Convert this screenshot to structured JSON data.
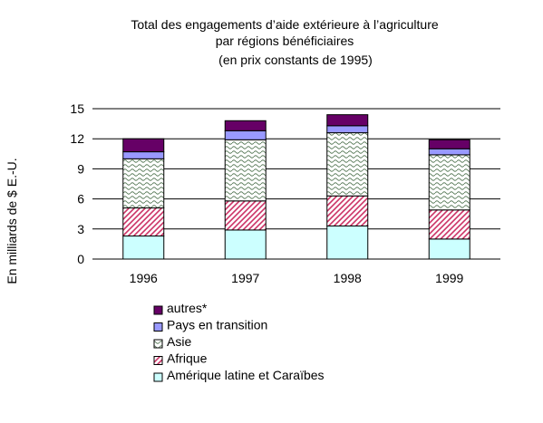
{
  "chart_data": {
    "type": "bar",
    "stacked": true,
    "title": [
      "Total des engagements d’aide extérieure à l’agriculture",
      "par régions bénéficiaires",
      "(en prix constants de 1995)"
    ],
    "ylabel": "En milliards de $ E.-U.",
    "xlabel": "",
    "ylim": [
      0,
      15
    ],
    "yticks": [
      "0",
      "3",
      "6",
      "9",
      "12",
      "15"
    ],
    "grid": true,
    "legend_position": "bottom",
    "categories": [
      "1996",
      "1997",
      "1998",
      "1999"
    ],
    "series": [
      {
        "name": "Amérique latine et Caraïbes",
        "values": [
          2.3,
          2.9,
          3.3,
          2.0
        ],
        "color": "#ccffff",
        "pattern": "solid"
      },
      {
        "name": "Afrique",
        "values": [
          2.8,
          2.9,
          3.0,
          2.9
        ],
        "color": "#ff99cc",
        "pattern": "diagonal"
      },
      {
        "name": "Asie",
        "values": [
          4.9,
          6.1,
          6.3,
          5.5
        ],
        "color": "#cceecc",
        "pattern": "wave"
      },
      {
        "name": "Pays en transition",
        "values": [
          0.7,
          0.9,
          0.7,
          0.6
        ],
        "color": "#9999ff",
        "pattern": "solid"
      },
      {
        "name": "autres*",
        "values": [
          1.3,
          1.0,
          1.1,
          0.9
        ],
        "color": "#660066",
        "pattern": "solid"
      }
    ],
    "legend_order": [
      4,
      3,
      2,
      1,
      0
    ]
  }
}
